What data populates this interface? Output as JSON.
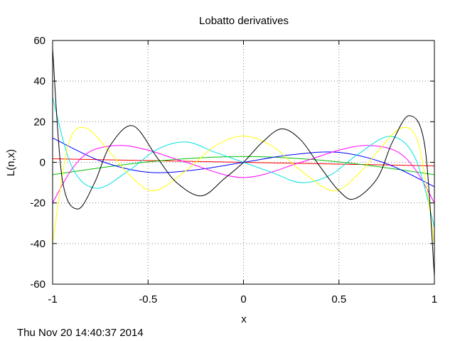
{
  "chart_data": {
    "type": "line",
    "title": "Lobatto derivatives",
    "xlabel": "x",
    "ylabel": "L(n,x)",
    "xlim": [
      -1,
      1
    ],
    "ylim": [
      -60,
      60
    ],
    "xticks": [
      -1,
      -0.5,
      0,
      0.5,
      1
    ],
    "xtick_labels": [
      "-1",
      "-0.5",
      "0",
      "0.5",
      "1"
    ],
    "yticks": [
      -60,
      -40,
      -20,
      0,
      20,
      40,
      60
    ],
    "ytick_labels": [
      "-60",
      "-40",
      "-20",
      "0",
      "20",
      "40",
      "60"
    ],
    "grid": true,
    "legend": "none",
    "series": [
      {
        "color": "#ff0000",
        "x": [
          -1,
          -0.5,
          0,
          0.5,
          1
        ],
        "values": [
          1.73,
          0.87,
          0,
          -0.87,
          -1.73
        ]
      },
      {
        "color": "#00c000",
        "x": [
          -1,
          -0.75,
          -0.5,
          -0.25,
          0,
          0.25,
          0.5,
          0.75,
          1
        ],
        "values": [
          -6.1,
          -2.7,
          0.2,
          2.1,
          2.9,
          2.1,
          0.2,
          -2.7,
          -6.1
        ]
      },
      {
        "color": "#0000ff",
        "x": [
          -1,
          -0.75,
          -0.5,
          -0.25,
          0,
          0.25,
          0.5,
          0.75,
          1
        ],
        "values": [
          12.0,
          0.7,
          -4.9,
          -3.7,
          0,
          3.7,
          4.9,
          -0.7,
          -12.0
        ]
      },
      {
        "color": "#ff00ff",
        "x": [
          -1,
          -0.9,
          -0.8,
          -0.65,
          -0.5,
          -0.3,
          0,
          0.3,
          0.5,
          0.65,
          0.8,
          0.9,
          1
        ],
        "values": [
          -20.0,
          -3.5,
          5.5,
          8.3,
          6.0,
          0.0,
          -7.5,
          0.0,
          6.0,
          8.3,
          5.5,
          -3.5,
          -20.0
        ]
      },
      {
        "color": "#00e0e0",
        "x": [
          -1,
          -0.9,
          -0.77,
          -0.6,
          -0.45,
          -0.3,
          -0.15,
          0,
          0.15,
          0.3,
          0.45,
          0.6,
          0.77,
          0.9,
          1
        ],
        "values": [
          32.0,
          -2.0,
          -12.8,
          -4.0,
          6.5,
          10.0,
          5.0,
          0,
          -5.0,
          -10.0,
          -6.5,
          4.0,
          12.8,
          2.0,
          -32.0
        ]
      },
      {
        "color": "#ffff00",
        "x": [
          -1,
          -0.92,
          -0.83,
          -0.7,
          -0.6,
          -0.47,
          -0.3,
          -0.15,
          0,
          0.15,
          0.3,
          0.47,
          0.6,
          0.7,
          0.83,
          0.92,
          1
        ],
        "values": [
          -40.0,
          8.0,
          17.0,
          5.0,
          -6.0,
          -14.0,
          -4.0,
          8.0,
          13.0,
          8.0,
          -4.0,
          -14.0,
          -6.0,
          5.0,
          17.0,
          8.0,
          -40.0
        ]
      },
      {
        "color": "#000000",
        "x": [
          -1,
          -0.95,
          -0.87,
          -0.78,
          -0.7,
          -0.58,
          -0.45,
          -0.35,
          -0.22,
          -0.1,
          0,
          0.1,
          0.2,
          0.3,
          0.4,
          0.5,
          0.58,
          0.7,
          0.78,
          0.87,
          0.95,
          1
        ],
        "values": [
          56.0,
          -8.0,
          -23.0,
          -10.0,
          8.0,
          18.0,
          2.0,
          -10.0,
          -16.5,
          -8.0,
          0,
          10.0,
          16.5,
          11.0,
          -2.0,
          -14.0,
          -18.0,
          -8.0,
          10.0,
          23.0,
          8.0,
          -56.0
        ]
      }
    ]
  },
  "footer": {
    "timestamp": "Thu Nov 20 14:40:37 2014"
  }
}
